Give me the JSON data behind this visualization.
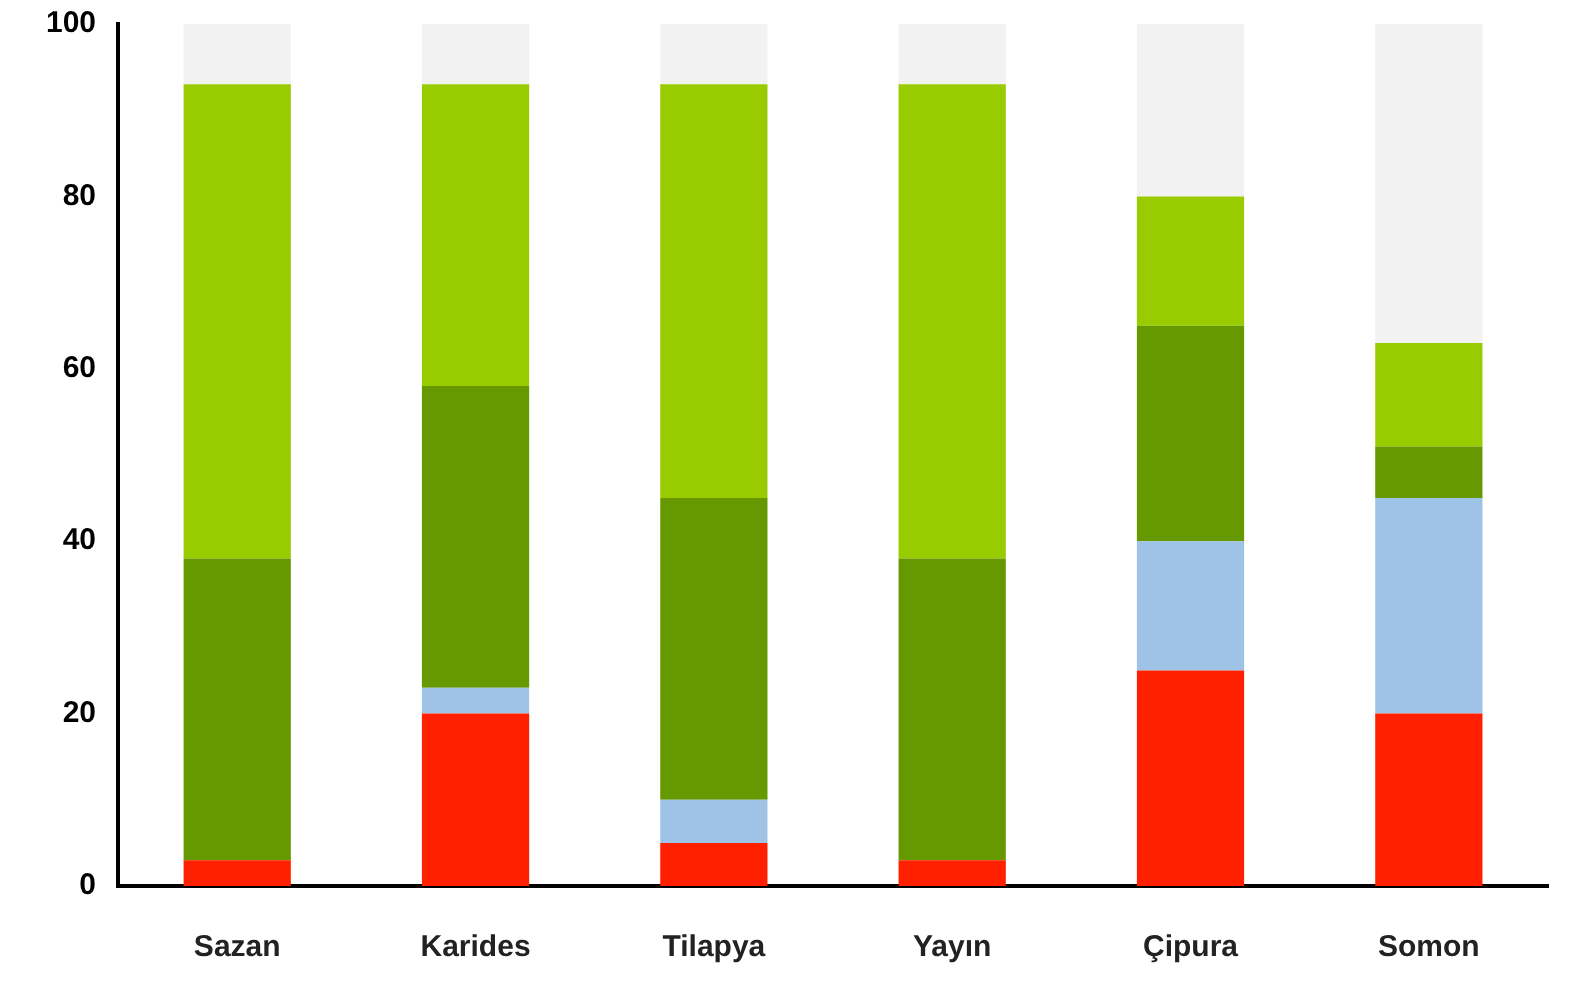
{
  "chart_data": {
    "type": "bar",
    "stacked": true,
    "grid": false,
    "legend": false,
    "categories": [
      "Sazan",
      "Karides",
      "Tilapya",
      "Yayın",
      "Çipura",
      "Somon"
    ],
    "ylim": [
      0,
      100
    ],
    "yticks": [
      0,
      20,
      40,
      60,
      80,
      100
    ],
    "series": [
      {
        "color": "#ff2000",
        "values": [
          3,
          20,
          5,
          3,
          25,
          20
        ]
      },
      {
        "color": "#9ec3e6",
        "values": [
          0,
          3,
          5,
          0,
          15,
          25
        ]
      },
      {
        "color": "#669900",
        "values": [
          35,
          35,
          35,
          35,
          25,
          6
        ]
      },
      {
        "color": "#99cc00",
        "values": [
          55,
          35,
          48,
          55,
          15,
          12
        ]
      },
      {
        "color": "#f2f2f2",
        "values": [
          7,
          7,
          7,
          7,
          20,
          37
        ]
      }
    ]
  }
}
